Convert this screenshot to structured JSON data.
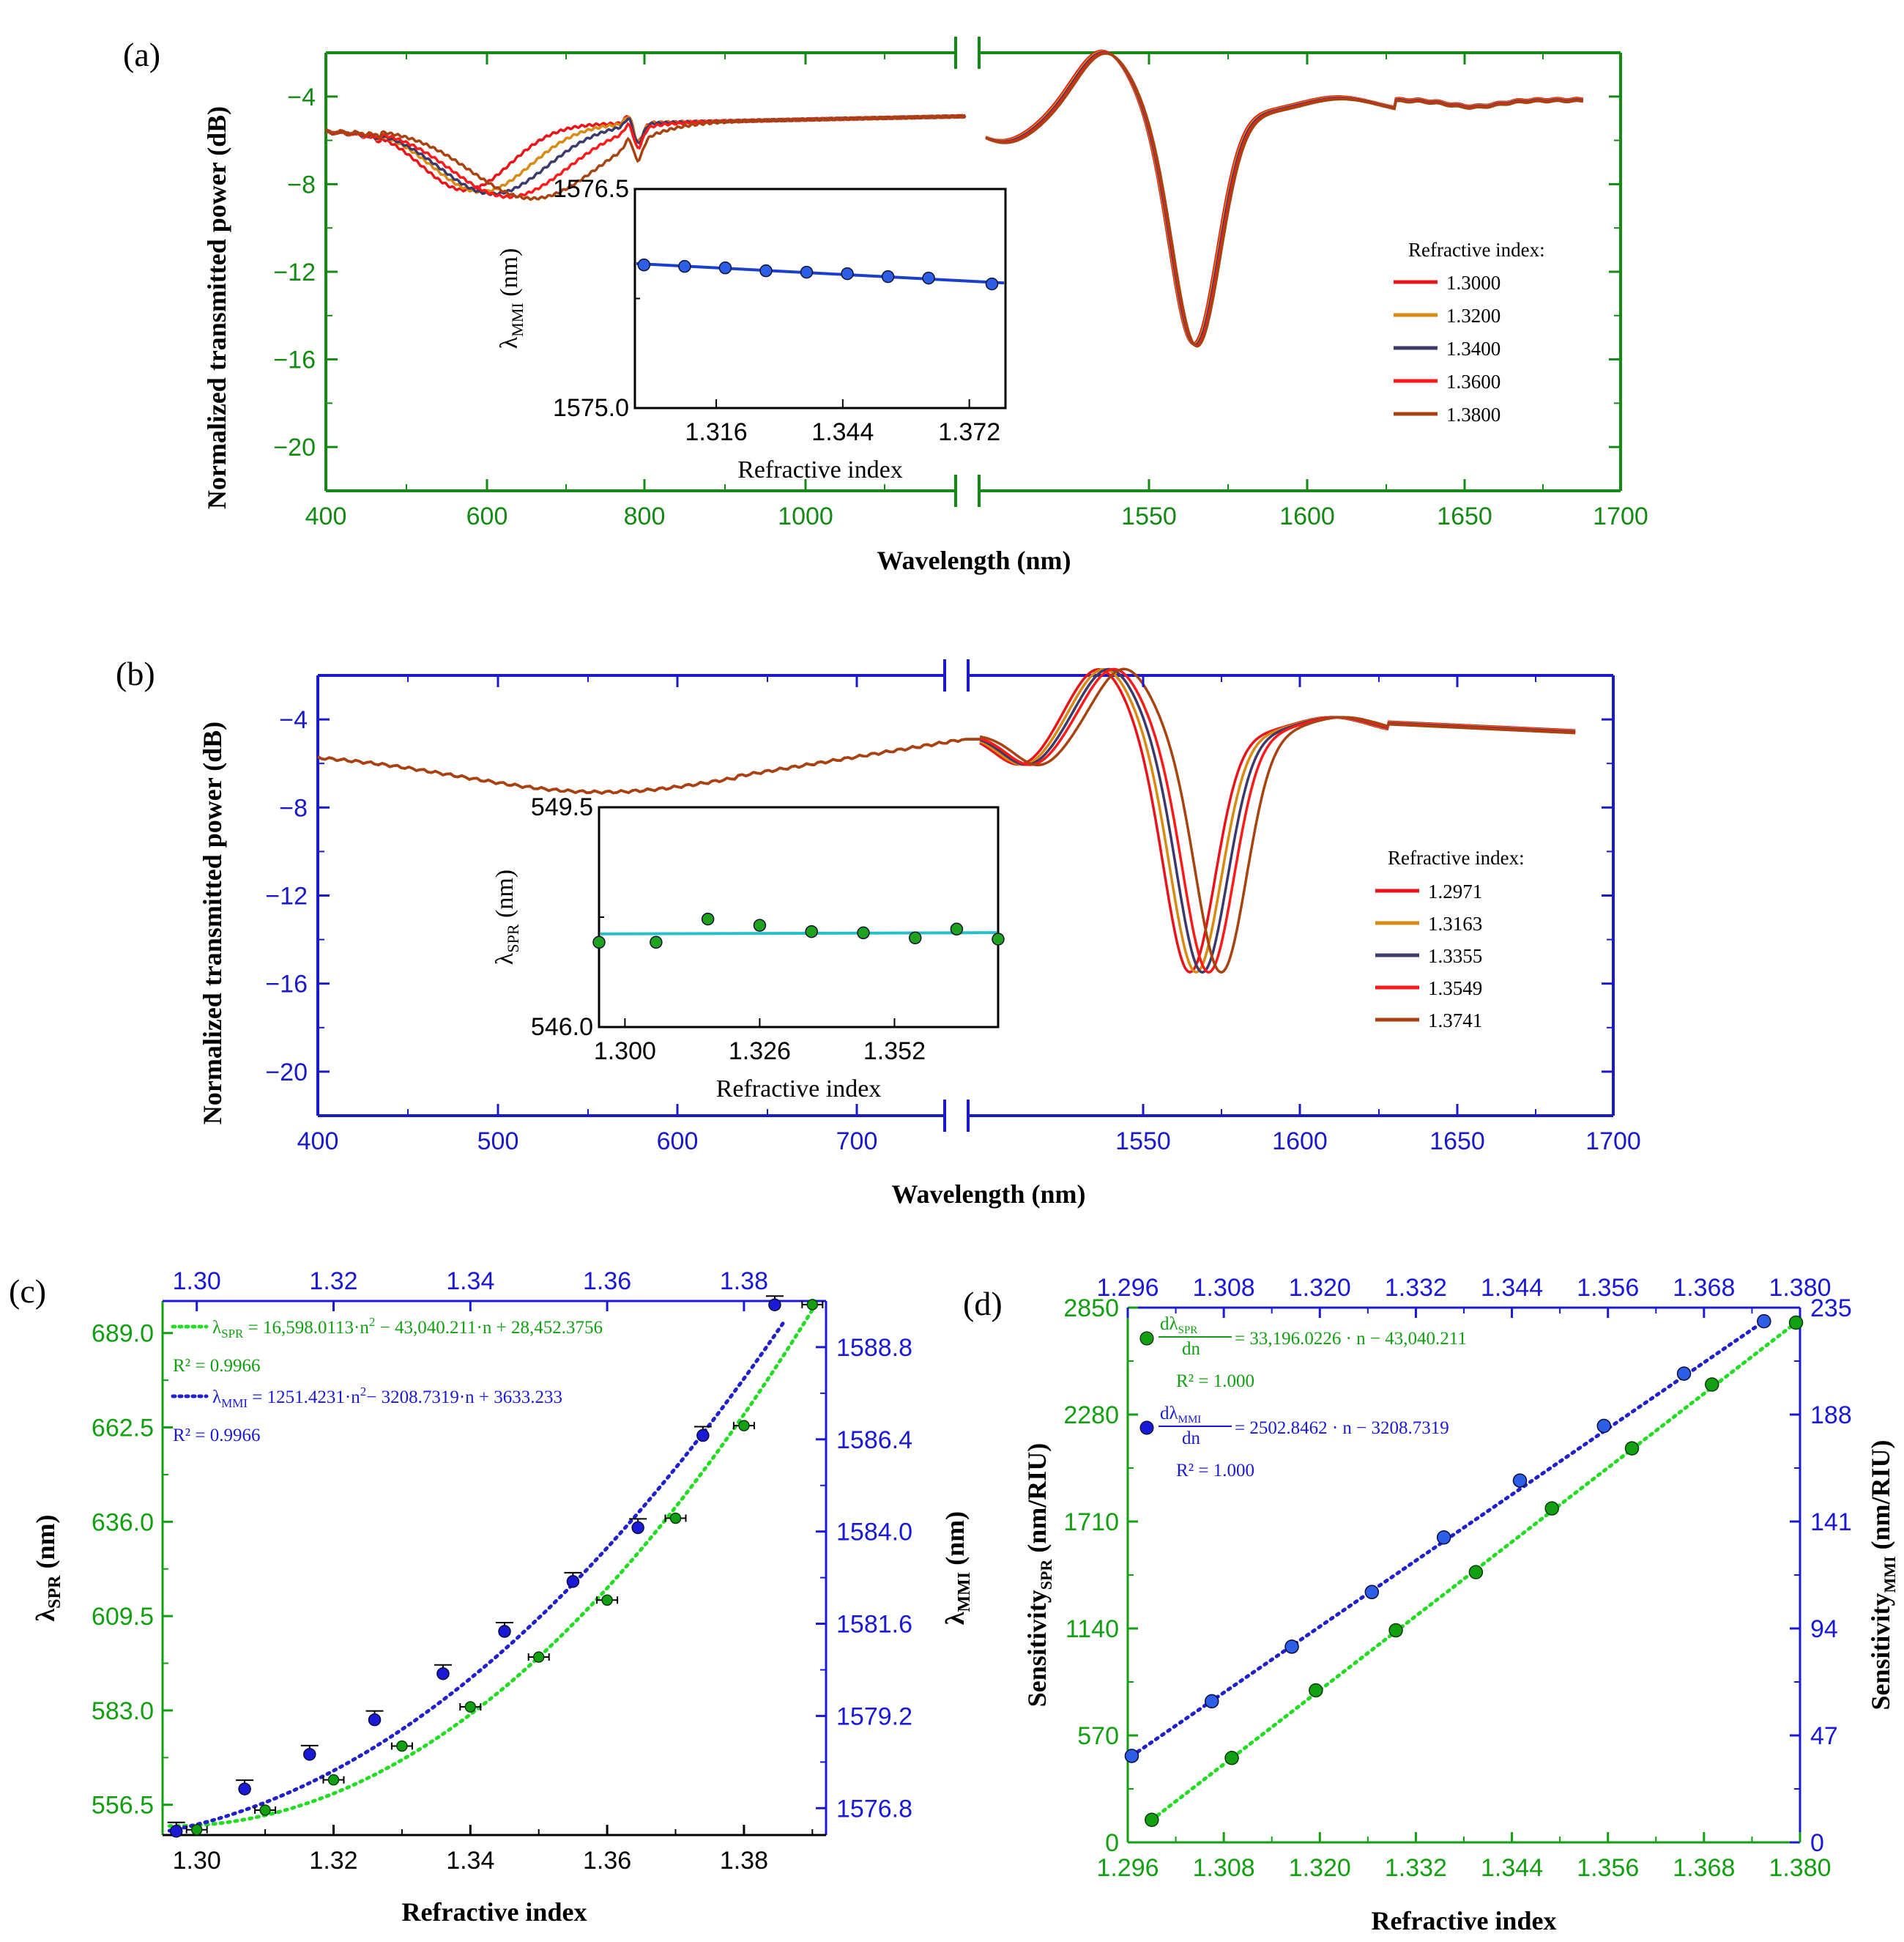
{
  "panels": {
    "a": {
      "label": "(a)",
      "color": "#138a13",
      "ylabel": "Normalized transmitted power (dB)",
      "xlabel": "Wavelength (nm)",
      "ylim": [
        -22,
        -2
      ],
      "yticks": [
        "−4",
        "−8",
        "−12",
        "−16",
        "−20"
      ],
      "xticks_left": [
        "400",
        "600",
        "800",
        "1000"
      ],
      "xticks_right": [
        "1550",
        "1600",
        "1650",
        "1700"
      ],
      "legend_title": "Refractive index:",
      "legend": [
        {
          "label": "1.3000",
          "color": "#e8141a"
        },
        {
          "label": "1.3200",
          "color": "#d98a12"
        },
        {
          "label": "1.3400",
          "color": "#3c3a6a"
        },
        {
          "label": "1.3600",
          "color": "#ff1a1a"
        },
        {
          "label": "1.3800",
          "color": "#a8420f"
        }
      ],
      "inset": {
        "ylabel_main": "λ",
        "ylabel_sub": "MMI",
        "ylabel_unit": " (nm)",
        "xlabel": "Refractive index",
        "yticks": [
          "1576.5",
          "1575.0"
        ],
        "xticks": [
          "1.316",
          "1.344",
          "1.372"
        ],
        "ylim": [
          1575.0,
          1576.5
        ],
        "xlim": [
          1.298,
          1.38
        ],
        "marker_color": "#2d5fe6",
        "line_color": "#1a3fd0",
        "points": [
          [
            1.3,
            1575.98
          ],
          [
            1.309,
            1575.97
          ],
          [
            1.318,
            1575.96
          ],
          [
            1.327,
            1575.94
          ],
          [
            1.336,
            1575.93
          ],
          [
            1.345,
            1575.92
          ],
          [
            1.354,
            1575.9
          ],
          [
            1.363,
            1575.89
          ],
          [
            1.377,
            1575.85
          ]
        ]
      }
    },
    "b": {
      "label": "(b)",
      "color": "#1a1ac8",
      "ylabel": "Normalized transmitted power (dB)",
      "xlabel": "Wavelength (nm)",
      "ylim": [
        -22,
        -2
      ],
      "yticks": [
        "−4",
        "−8",
        "−12",
        "−16",
        "−20"
      ],
      "xticks_left": [
        "400",
        "500",
        "600",
        "700"
      ],
      "xticks_right": [
        "1550",
        "1600",
        "1650",
        "1700"
      ],
      "legend_title": "Refractive index:",
      "legend": [
        {
          "label": "1.2971",
          "color": "#e8141a"
        },
        {
          "label": "1.3163",
          "color": "#d98a12"
        },
        {
          "label": "1.3355",
          "color": "#3c3a6a"
        },
        {
          "label": "1.3549",
          "color": "#ff1a1a"
        },
        {
          "label": "1.3741",
          "color": "#a8420f"
        }
      ],
      "inset": {
        "ylabel_main": "λ",
        "ylabel_sub": "SPR",
        "ylabel_unit": " (nm)",
        "xlabel": "Refractive index",
        "yticks": [
          "549.5",
          "546.0"
        ],
        "xticks": [
          "1.300",
          "1.326",
          "1.352"
        ],
        "ylim": [
          546.0,
          549.5
        ],
        "xlim": [
          1.295,
          1.372
        ],
        "marker_color": "#1fa31f",
        "line_color": "#28c0c8",
        "points": [
          [
            1.295,
            547.35
          ],
          [
            1.306,
            547.35
          ],
          [
            1.316,
            547.72
          ],
          [
            1.326,
            547.62
          ],
          [
            1.336,
            547.52
          ],
          [
            1.346,
            547.5
          ],
          [
            1.356,
            547.42
          ],
          [
            1.364,
            547.56
          ],
          [
            1.372,
            547.4
          ]
        ]
      }
    },
    "c": {
      "label": "(c)",
      "xlabel": "Refractive index",
      "ylabel_left_main": "λ",
      "ylabel_left_sub": "SPR",
      "ylabel_left_unit": " (nm)",
      "ylabel_right_main": "λ",
      "ylabel_right_sub": "MMI",
      "ylabel_right_unit": " (nm)",
      "yticks_left": [
        "689.0",
        "662.5",
        "636.0",
        "609.5",
        "583.0",
        "556.5"
      ],
      "yticks_right": [
        "1588.8",
        "1586.4",
        "1584.0",
        "1581.6",
        "1579.2",
        "1576.8"
      ],
      "xticks_bottom": [
        "1.30",
        "1.32",
        "1.34",
        "1.36",
        "1.38"
      ],
      "xticks_top": [
        "1.30",
        "1.32",
        "1.34",
        "1.36",
        "1.38"
      ],
      "eq_spr": "λSPR = 16,598.0113·n² − 43,040.211·n + 28,452.3756",
      "eq_spr_parts": {
        "lhs": "λ",
        "sub": "SPR",
        "rhs": " = 16,598.0113·n",
        "sup": "2",
        "rest": " − 43,040.211·n + 28,452.3756"
      },
      "r2_spr": "R² = 0.9966",
      "eq_mmi_parts": {
        "lhs": "λ",
        "sub": "MMI",
        "rhs": " = 1251.4231·n",
        "sup": "2",
        "rest": "− 3208.7319·n + 3633.233"
      },
      "r2_mmi": "R² = 0.9966",
      "spr_color": "#12a012",
      "mmi_color": "#1a1ad6",
      "spr_fit_color": "#22dd22",
      "mmi_fit_color": "#2020cc"
    },
    "d": {
      "label": "(d)",
      "xlabel": "Refractive index",
      "ylabel_left": "Sensitivity",
      "ylabel_left_sub": "SPR",
      "ylabel_left_unit": " (nm/RIU)",
      "ylabel_right": "Sensitivity",
      "ylabel_right_sub": "MMI",
      "ylabel_right_unit": " (nm/RIU)",
      "yticks_left": [
        "2850",
        "2280",
        "1710",
        "1140",
        "570",
        "0"
      ],
      "yticks_right": [
        "235",
        "188",
        "141",
        "94",
        "47",
        "0"
      ],
      "xticks_bottom": [
        "1.296",
        "1.308",
        "1.320",
        "1.332",
        "1.344",
        "1.356",
        "1.368",
        "1.380"
      ],
      "xticks_top": [
        "1.296",
        "1.308",
        "1.320",
        "1.332",
        "1.344",
        "1.356",
        "1.368",
        "1.380"
      ],
      "eq_spr_num": "dλ",
      "eq_spr_num_sub": "SPR",
      "eq_spr_den": "dn",
      "eq_spr_rhs": "= 33,196.0226 · n − 43,040.211",
      "r2_spr": "R² = 1.000",
      "eq_mmi_num": "dλ",
      "eq_mmi_num_sub": "MMI",
      "eq_mmi_den": "dn",
      "eq_mmi_rhs": "= 2502.8462 · n − 3208.7319",
      "r2_mmi": "R² = 1.000",
      "spr_color": "#12a012",
      "mmi_color": "#1a1ad6"
    }
  },
  "chart_data": [
    {
      "type": "line",
      "panel": "a",
      "title": "",
      "xlabel": "Wavelength (nm)",
      "ylabel": "Normalized transmitted power (dB)",
      "ylim": [
        -22,
        -2
      ],
      "xlim_segments": [
        [
          400,
          1200
        ],
        [
          1510,
          1700
        ]
      ],
      "series": [
        {
          "name": "1.3000",
          "dip_nm": 575,
          "dip_db": -7.9
        },
        {
          "name": "1.3200",
          "dip_nm": 595,
          "dip_db": -8.0
        },
        {
          "name": "1.3400",
          "dip_nm": 610,
          "dip_db": -8.1
        },
        {
          "name": "1.3600",
          "dip_nm": 630,
          "dip_db": -8.2
        },
        {
          "name": "1.3800",
          "dip_nm": 660,
          "dip_db": -8.3
        }
      ],
      "common_features": {
        "mmi_peak_nm": 1547,
        "mmi_peak_db": -2.1,
        "mmi_dip_nm": 1576,
        "mmi_dip_db": -15.4
      }
    },
    {
      "type": "scatter",
      "panel": "a-inset",
      "xlabel": "Refractive index",
      "ylabel": "λMMI (nm)",
      "x": [
        1.3,
        1.309,
        1.318,
        1.327,
        1.336,
        1.345,
        1.354,
        1.363,
        1.377
      ],
      "y": [
        1575.98,
        1575.97,
        1575.96,
        1575.94,
        1575.93,
        1575.92,
        1575.9,
        1575.89,
        1575.85
      ],
      "ylim": [
        1575.0,
        1576.5
      ]
    },
    {
      "type": "line",
      "panel": "b",
      "xlabel": "Wavelength (nm)",
      "ylabel": "Normalized transmitted power (dB)",
      "ylim": [
        -22,
        -2
      ],
      "xlim_segments": [
        [
          400,
          750
        ],
        [
          1510,
          1700
        ]
      ],
      "series": [
        {
          "name": "1.2971",
          "dip_nm": 1576,
          "dip_db": -15.0
        },
        {
          "name": "1.3163",
          "dip_nm": 1578,
          "dip_db": -15.2
        },
        {
          "name": "1.3355",
          "dip_nm": 1580,
          "dip_db": -15.4
        },
        {
          "name": "1.3549",
          "dip_nm": 1582,
          "dip_db": -15.6
        },
        {
          "name": "1.3741",
          "dip_nm": 1587,
          "dip_db": -15.8
        }
      ],
      "common_features": {
        "spr_dip_nm": 550,
        "spr_dip_db": -7.3
      }
    },
    {
      "type": "scatter",
      "panel": "b-inset",
      "xlabel": "Refractive index",
      "ylabel": "λSPR (nm)",
      "x": [
        1.295,
        1.306,
        1.316,
        1.326,
        1.336,
        1.346,
        1.356,
        1.364,
        1.372
      ],
      "y": [
        547.35,
        547.35,
        547.72,
        547.62,
        547.52,
        547.5,
        547.42,
        547.56,
        547.4
      ],
      "ylim": [
        546.0,
        549.5
      ]
    },
    {
      "type": "scatter",
      "panel": "c",
      "xlabel": "Refractive index",
      "xlim": [
        1.295,
        1.392
      ],
      "series": [
        {
          "name": "λSPR",
          "axis": "left",
          "ylim": [
            548,
            698
          ],
          "x": [
            1.3,
            1.31,
            1.32,
            1.33,
            1.34,
            1.35,
            1.36,
            1.37,
            1.38,
            1.39
          ],
          "y": [
            549.5,
            555.0,
            563.5,
            573.0,
            584.0,
            598.0,
            614.0,
            637.0,
            663.0,
            697.0
          ]
        },
        {
          "name": "λMMI",
          "axis": "right",
          "ylim": [
            1576.1,
            1590.0
          ],
          "x": [
            1.297,
            1.307,
            1.3165,
            1.326,
            1.336,
            1.345,
            1.355,
            1.3645,
            1.374,
            1.3845
          ],
          "y": [
            1576.2,
            1577.3,
            1578.2,
            1579.1,
            1580.3,
            1581.4,
            1582.7,
            1584.1,
            1586.5,
            1589.9
          ]
        }
      ]
    },
    {
      "type": "scatter",
      "panel": "d",
      "xlabel": "Refractive index",
      "xlim": [
        1.296,
        1.38
      ],
      "series": [
        {
          "name": "SensitivitySPR",
          "axis": "left",
          "ylim": [
            0,
            2850
          ],
          "x": [
            1.299,
            1.309,
            1.3195,
            1.3295,
            1.3395,
            1.349,
            1.359,
            1.369,
            1.3795
          ],
          "y": [
            120,
            450,
            810,
            1130,
            1440,
            1780,
            2100,
            2440,
            2770
          ]
        },
        {
          "name": "SensitivityMMI",
          "axis": "right",
          "ylim": [
            0,
            235
          ],
          "x": [
            1.2965,
            1.3065,
            1.3165,
            1.3265,
            1.3355,
            1.345,
            1.3555,
            1.3655,
            1.3755
          ],
          "y": [
            38,
            62,
            86,
            110,
            134,
            159,
            183,
            206,
            229
          ]
        }
      ]
    }
  ]
}
